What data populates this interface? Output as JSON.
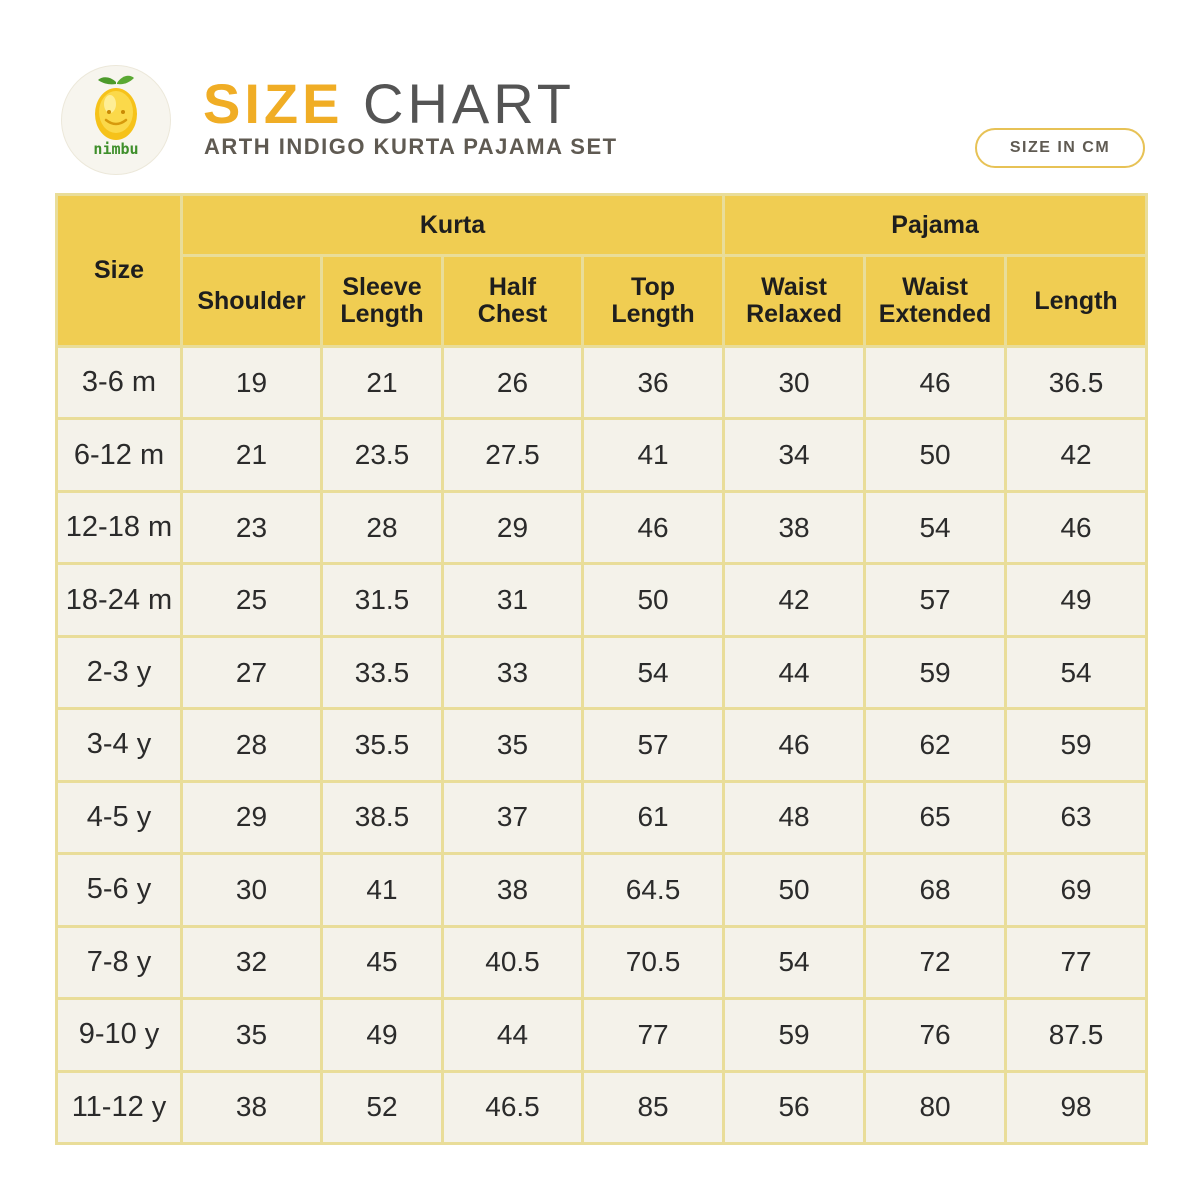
{
  "brand": {
    "name": "nimbu"
  },
  "header": {
    "title_highlight": "SIZE",
    "title_rest": "CHART",
    "subtitle": "ARTH INDIGO KURTA PAJAMA SET",
    "unit_badge": "SIZE IN CM"
  },
  "colors": {
    "accent": "#f0ad25",
    "header_fill": "#f0cd52",
    "grid_line": "#e9dd99",
    "cell_fill": "#f4f2ea",
    "logo_leaf": "#3f8f2b"
  },
  "table": {
    "size_header": "Size",
    "groups": {
      "kurta": "Kurta",
      "pajama": "Pajama"
    },
    "columns": [
      {
        "line1": "Shoulder",
        "line2": ""
      },
      {
        "line1": "Sleeve",
        "line2": "Length"
      },
      {
        "line1": "Half",
        "line2": "Chest"
      },
      {
        "line1": "Top",
        "line2": "Length"
      },
      {
        "line1": "Waist",
        "line2": "Relaxed"
      },
      {
        "line1": "Waist",
        "line2": "Extended"
      },
      {
        "line1": "Length",
        "line2": ""
      }
    ],
    "rows": [
      [
        "3-6 m",
        "19",
        "21",
        "26",
        "36",
        "30",
        "46",
        "36.5"
      ],
      [
        "6-12 m",
        "21",
        "23.5",
        "27.5",
        "41",
        "34",
        "50",
        "42"
      ],
      [
        "12-18 m",
        "23",
        "28",
        "29",
        "46",
        "38",
        "54",
        "46"
      ],
      [
        "18-24 m",
        "25",
        "31.5",
        "31",
        "50",
        "42",
        "57",
        "49"
      ],
      [
        "2-3 y",
        "27",
        "33.5",
        "33",
        "54",
        "44",
        "59",
        "54"
      ],
      [
        "3-4 y",
        "28",
        "35.5",
        "35",
        "57",
        "46",
        "62",
        "59"
      ],
      [
        "4-5 y",
        "29",
        "38.5",
        "37",
        "61",
        "48",
        "65",
        "63"
      ],
      [
        "5-6 y",
        "30",
        "41",
        "38",
        "64.5",
        "50",
        "68",
        "69"
      ],
      [
        "7-8 y",
        "32",
        "45",
        "40.5",
        "70.5",
        "54",
        "72",
        "77"
      ],
      [
        "9-10 y",
        "35",
        "49",
        "44",
        "77",
        "59",
        "76",
        "87.5"
      ],
      [
        "11-12 y",
        "38",
        "52",
        "46.5",
        "85",
        "56",
        "80",
        "98"
      ]
    ]
  }
}
